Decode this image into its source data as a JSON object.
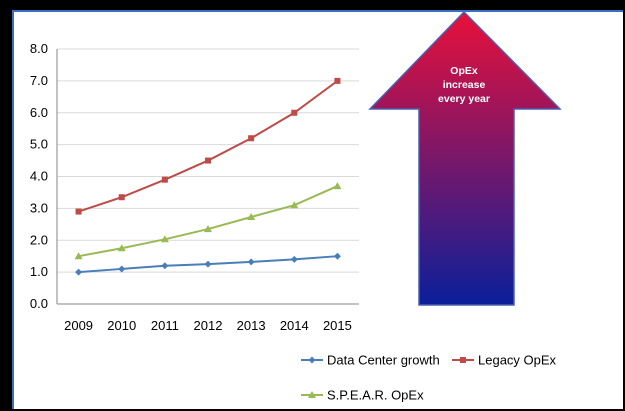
{
  "chart_data": {
    "type": "line",
    "title": "",
    "xlabel": "",
    "ylabel": "",
    "categories": [
      "2009",
      "2010",
      "2011",
      "2012",
      "2013",
      "2014",
      "2015"
    ],
    "ylim": [
      0,
      8
    ],
    "yticks": [
      "0.0",
      "1.0",
      "2.0",
      "3.0",
      "4.0",
      "5.0",
      "6.0",
      "7.0",
      "8.0"
    ],
    "grid": true,
    "legend_position": "bottom",
    "series": [
      {
        "name": "Data Center growth",
        "color": "#4a7ebb",
        "marker": "diamond",
        "values": [
          1.0,
          1.1,
          1.2,
          1.25,
          1.32,
          1.4,
          1.5
        ]
      },
      {
        "name": "Legacy OpEx",
        "color": "#be4b48",
        "marker": "square",
        "values": [
          2.9,
          3.35,
          3.9,
          4.5,
          5.2,
          6.0,
          7.0
        ]
      },
      {
        "name": "S.P.E.A.R. OpEx",
        "color": "#98b954",
        "marker": "triangle",
        "values": [
          1.5,
          1.75,
          2.03,
          2.35,
          2.73,
          3.1,
          3.7
        ]
      }
    ]
  },
  "arrow": {
    "lines": [
      "OpEx",
      "increase",
      "every year"
    ],
    "color_top": "#e8103a",
    "color_bottom": "#0a1f9a"
  }
}
